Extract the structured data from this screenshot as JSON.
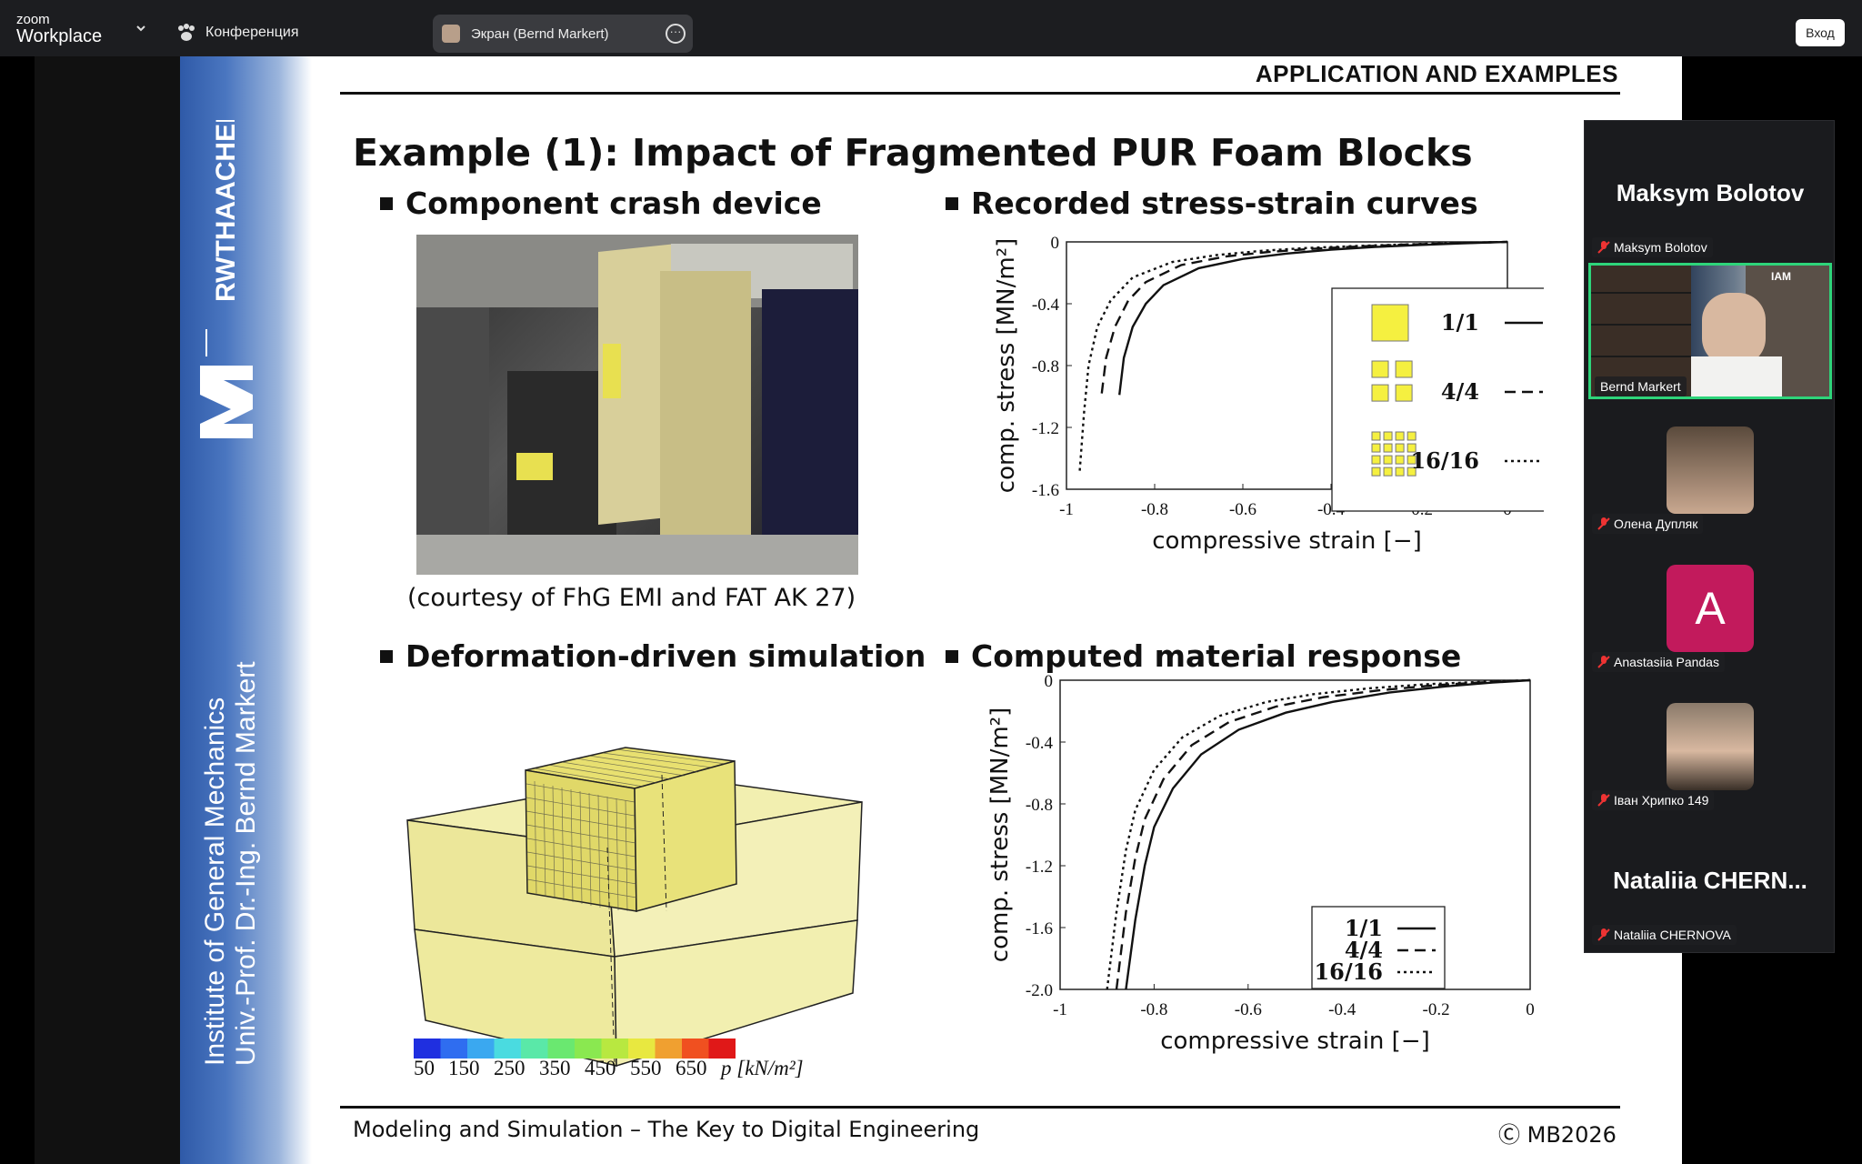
{
  "topbar": {
    "logo_small": "zoom",
    "logo_big": "Workplace",
    "conference_label": "Конференция",
    "screen_share_label": "Экран (Bernd Markert)",
    "more_label": "···",
    "login_label": "Вход"
  },
  "slide": {
    "header": "APPLICATION AND EXAMPLES",
    "title": "Example (1): Impact of Fragmented PUR Foam Blocks",
    "bullet_tl": "Component crash device",
    "bullet_tr": "Recorded stress-strain curves",
    "bullet_bl": "Deformation-driven simulation",
    "bullet_br": "Computed material response",
    "courtesy": "(courtesy of FhG EMI and FAT AK 27)",
    "footer": "Modeling and Simulation – The Key to Digital Engineering",
    "copyright": "Ⓒ MB2026",
    "side_logo_text": "RWTHAACHEN UNIVERSITY",
    "institute_line1": "Institute of General Mechanics",
    "institute_line2": "Univ.-Prof. Dr.-Ing. Bernd Markert",
    "colorbar_ticks": [
      "50",
      "150",
      "250",
      "350",
      "450",
      "550",
      "650"
    ],
    "colorbar_unit": "p [kN/m²]",
    "colorbar_colors": [
      "#1f2fe0",
      "#2f6df0",
      "#3aa8f0",
      "#4adbe0",
      "#5ae8a8",
      "#6ae870",
      "#8ae850",
      "#b8e840",
      "#e8e840",
      "#f0a030",
      "#f05020",
      "#e01818"
    ]
  },
  "chart_data": [
    {
      "type": "line",
      "xlabel": "compressive strain [−]",
      "ylabel": "comp. stress [MN/m²]",
      "xlim": [
        -1,
        0
      ],
      "ylim": [
        -1.6,
        0
      ],
      "xticks": [
        "-1",
        "-0.8",
        "-0.6",
        "-0.4",
        "-0.2",
        "0"
      ],
      "yticks": [
        "0",
        "-0.4",
        "-0.8",
        "-1.2",
        "-1.6"
      ],
      "legend_position": "right",
      "series": [
        {
          "name": "1/1",
          "style": "solid",
          "x": [
            -0.88,
            -0.87,
            -0.85,
            -0.82,
            -0.78,
            -0.7,
            -0.6,
            -0.5,
            -0.4,
            -0.3,
            -0.2,
            -0.1,
            0
          ],
          "y": [
            -0.99,
            -0.75,
            -0.55,
            -0.4,
            -0.28,
            -0.17,
            -0.11,
            -0.075,
            -0.05,
            -0.033,
            -0.02,
            -0.009,
            0
          ]
        },
        {
          "name": "4/4",
          "style": "dashed",
          "x": [
            -0.92,
            -0.91,
            -0.89,
            -0.86,
            -0.82,
            -0.74,
            -0.64,
            -0.54,
            -0.44,
            -0.34,
            -0.24,
            -0.12,
            0
          ],
          "y": [
            -0.98,
            -0.75,
            -0.55,
            -0.38,
            -0.26,
            -0.15,
            -0.095,
            -0.065,
            -0.045,
            -0.03,
            -0.018,
            -0.008,
            0
          ]
        },
        {
          "name": "16/16",
          "style": "dotted",
          "x": [
            -0.97,
            -0.96,
            -0.95,
            -0.93,
            -0.9,
            -0.85,
            -0.76,
            -0.66,
            -0.56,
            -0.46,
            -0.32,
            -0.16,
            0
          ],
          "y": [
            -1.48,
            -1.1,
            -0.8,
            -0.55,
            -0.38,
            -0.23,
            -0.13,
            -0.085,
            -0.058,
            -0.04,
            -0.024,
            -0.01,
            0
          ]
        }
      ]
    },
    {
      "type": "line",
      "xlabel": "compressive strain [−]",
      "ylabel": "comp. stress [MN/m²]",
      "xlim": [
        -1,
        0
      ],
      "ylim": [
        -2.0,
        0
      ],
      "xticks": [
        "-1",
        "-0.8",
        "-0.6",
        "-0.4",
        "-0.2",
        "0"
      ],
      "yticks": [
        "0",
        "-0.4",
        "-0.8",
        "-1.2",
        "-1.6",
        "-2.0"
      ],
      "legend_position": "bottom-right",
      "series": [
        {
          "name": "1/1",
          "style": "solid",
          "x": [
            -0.86,
            -0.84,
            -0.82,
            -0.8,
            -0.76,
            -0.7,
            -0.62,
            -0.52,
            -0.42,
            -0.3,
            -0.18,
            -0.08,
            0
          ],
          "y": [
            -2.0,
            -1.55,
            -1.2,
            -0.95,
            -0.7,
            -0.48,
            -0.32,
            -0.21,
            -0.14,
            -0.08,
            -0.04,
            -0.015,
            0
          ]
        },
        {
          "name": "4/4",
          "style": "dashed",
          "x": [
            -0.88,
            -0.86,
            -0.84,
            -0.82,
            -0.78,
            -0.72,
            -0.64,
            -0.54,
            -0.44,
            -0.32,
            -0.2,
            -0.09,
            0
          ],
          "y": [
            -2.0,
            -1.5,
            -1.15,
            -0.9,
            -0.64,
            -0.42,
            -0.27,
            -0.17,
            -0.11,
            -0.065,
            -0.032,
            -0.012,
            0
          ]
        },
        {
          "name": "16/16",
          "style": "dotted",
          "x": [
            -0.9,
            -0.88,
            -0.86,
            -0.84,
            -0.8,
            -0.74,
            -0.66,
            -0.56,
            -0.46,
            -0.34,
            -0.22,
            -0.1,
            0
          ],
          "y": [
            -2.0,
            -1.5,
            -1.1,
            -0.84,
            -0.58,
            -0.37,
            -0.23,
            -0.14,
            -0.09,
            -0.052,
            -0.026,
            -0.01,
            0
          ]
        }
      ]
    }
  ],
  "participants": {
    "p1_big": "Maksym Bolotov",
    "p1_label": "Maksym Bolotov",
    "p2_label": "Bernd Markert",
    "p3_label": "Олена Дупляк",
    "p4_initial": "A",
    "p4_label": "Anastasiia Pandas",
    "p5_label": "Іван Хрипко 149",
    "p6_big": "Nataliia  CHERN...",
    "p6_label": "Nataliia CHERNOVA"
  }
}
